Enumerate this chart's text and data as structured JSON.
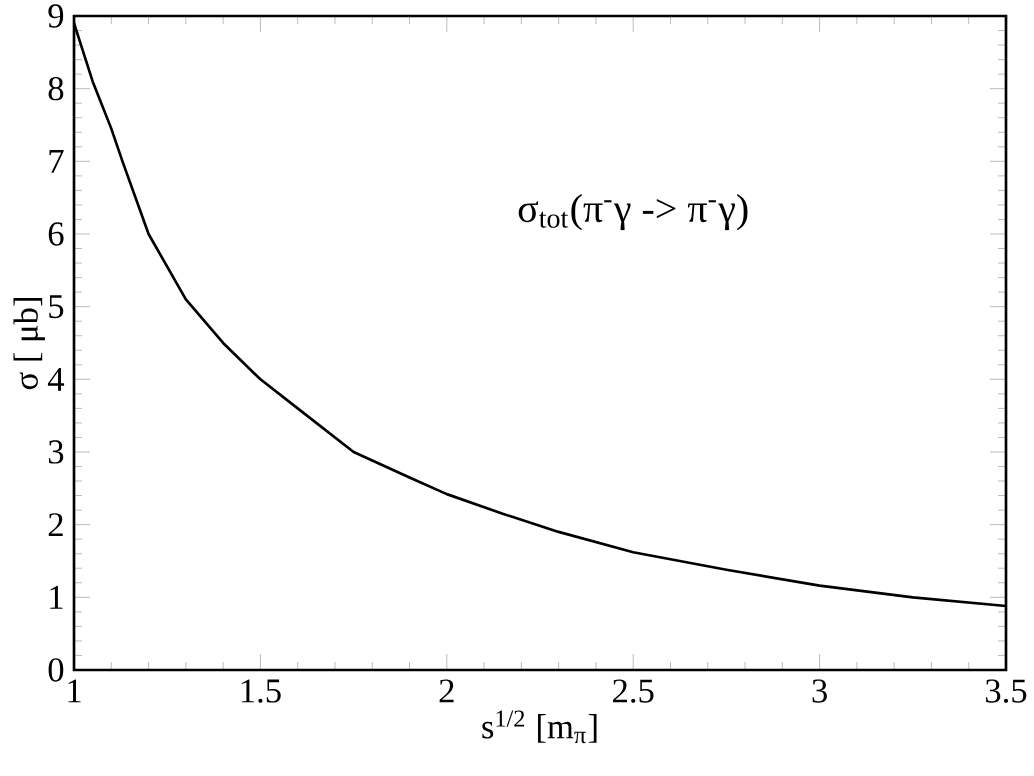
{
  "chart_data": {
    "type": "line",
    "title": "σ$_{tot}$(π$^{-}$γ -> π$^{-}$γ)",
    "xlabel": "s$^{1/2}$ [m$_{π}$]",
    "ylabel": "σ [ μb]",
    "x": [
      1,
      1.05,
      1.1,
      1.13,
      1.2,
      1.3,
      1.4,
      1.5,
      1.6,
      1.75,
      1.9,
      2,
      2.15,
      2.3,
      2.5,
      2.75,
      3,
      3.25,
      3.5
    ],
    "series": [
      {
        "color": "#000000",
        "values": [
          8.9,
          8.1,
          7.45,
          7.0,
          6.0,
          5.1,
          4.5,
          4.0,
          3.6,
          3.0,
          2.65,
          2.42,
          2.15,
          1.9,
          1.62,
          1.38,
          1.16,
          1.0,
          0.88
        ]
      }
    ],
    "xlim": [
      1,
      3.5
    ],
    "ylim": [
      0,
      9
    ],
    "xticks": [
      1,
      1.5,
      2,
      2.5,
      3,
      3.5
    ],
    "yticks": [
      0,
      1,
      2,
      3,
      4,
      5,
      6,
      7,
      8,
      9
    ],
    "grid": false,
    "legend": false,
    "marker": "none",
    "line_style": "solid"
  }
}
